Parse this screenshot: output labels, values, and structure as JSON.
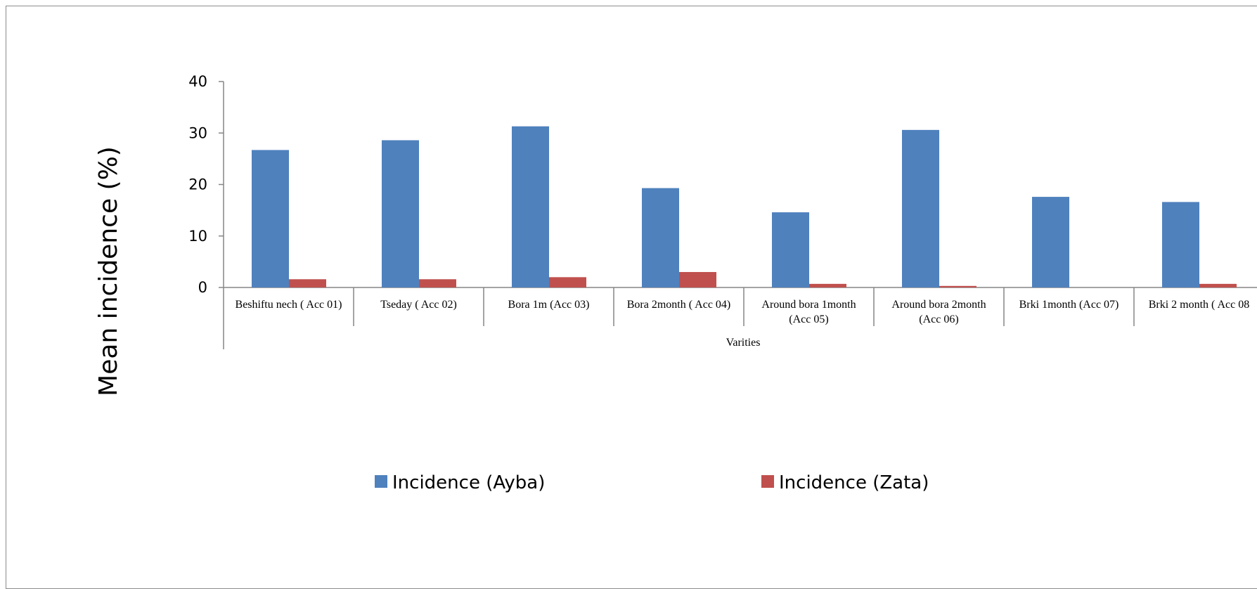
{
  "chart_data": {
    "type": "bar",
    "title": "",
    "xlabel": "Varities",
    "ylabel": "Mean incidence (%)",
    "ylim": [
      0,
      40
    ],
    "yticks": [
      0,
      10,
      20,
      30,
      40
    ],
    "categories": [
      [
        "Beshiftu nech ( Acc 01)"
      ],
      [
        "Tseday ( Acc 02)"
      ],
      [
        "Bora 1m (Acc 03)"
      ],
      [
        "Bora 2month ( Acc 04)"
      ],
      [
        "Around bora 1month",
        "(Acc 05)"
      ],
      [
        "Around bora  2month",
        "(Acc 06)"
      ],
      [
        "Brki  1month (Acc 07)"
      ],
      [
        "Brki  2 month ( Acc 08"
      ]
    ],
    "series": [
      {
        "name": "Incidence (Ayba)",
        "color": "#4F81BD",
        "values": [
          26.7,
          28.6,
          31.3,
          19.3,
          14.6,
          30.6,
          17.6,
          16.6
        ]
      },
      {
        "name": "Incidence (Zata)",
        "color": "#C0504D",
        "values": [
          1.6,
          1.6,
          2.0,
          3.0,
          0.7,
          0.3,
          0.0,
          0.7
        ]
      }
    ],
    "grid": false,
    "legend_position": "bottom"
  }
}
